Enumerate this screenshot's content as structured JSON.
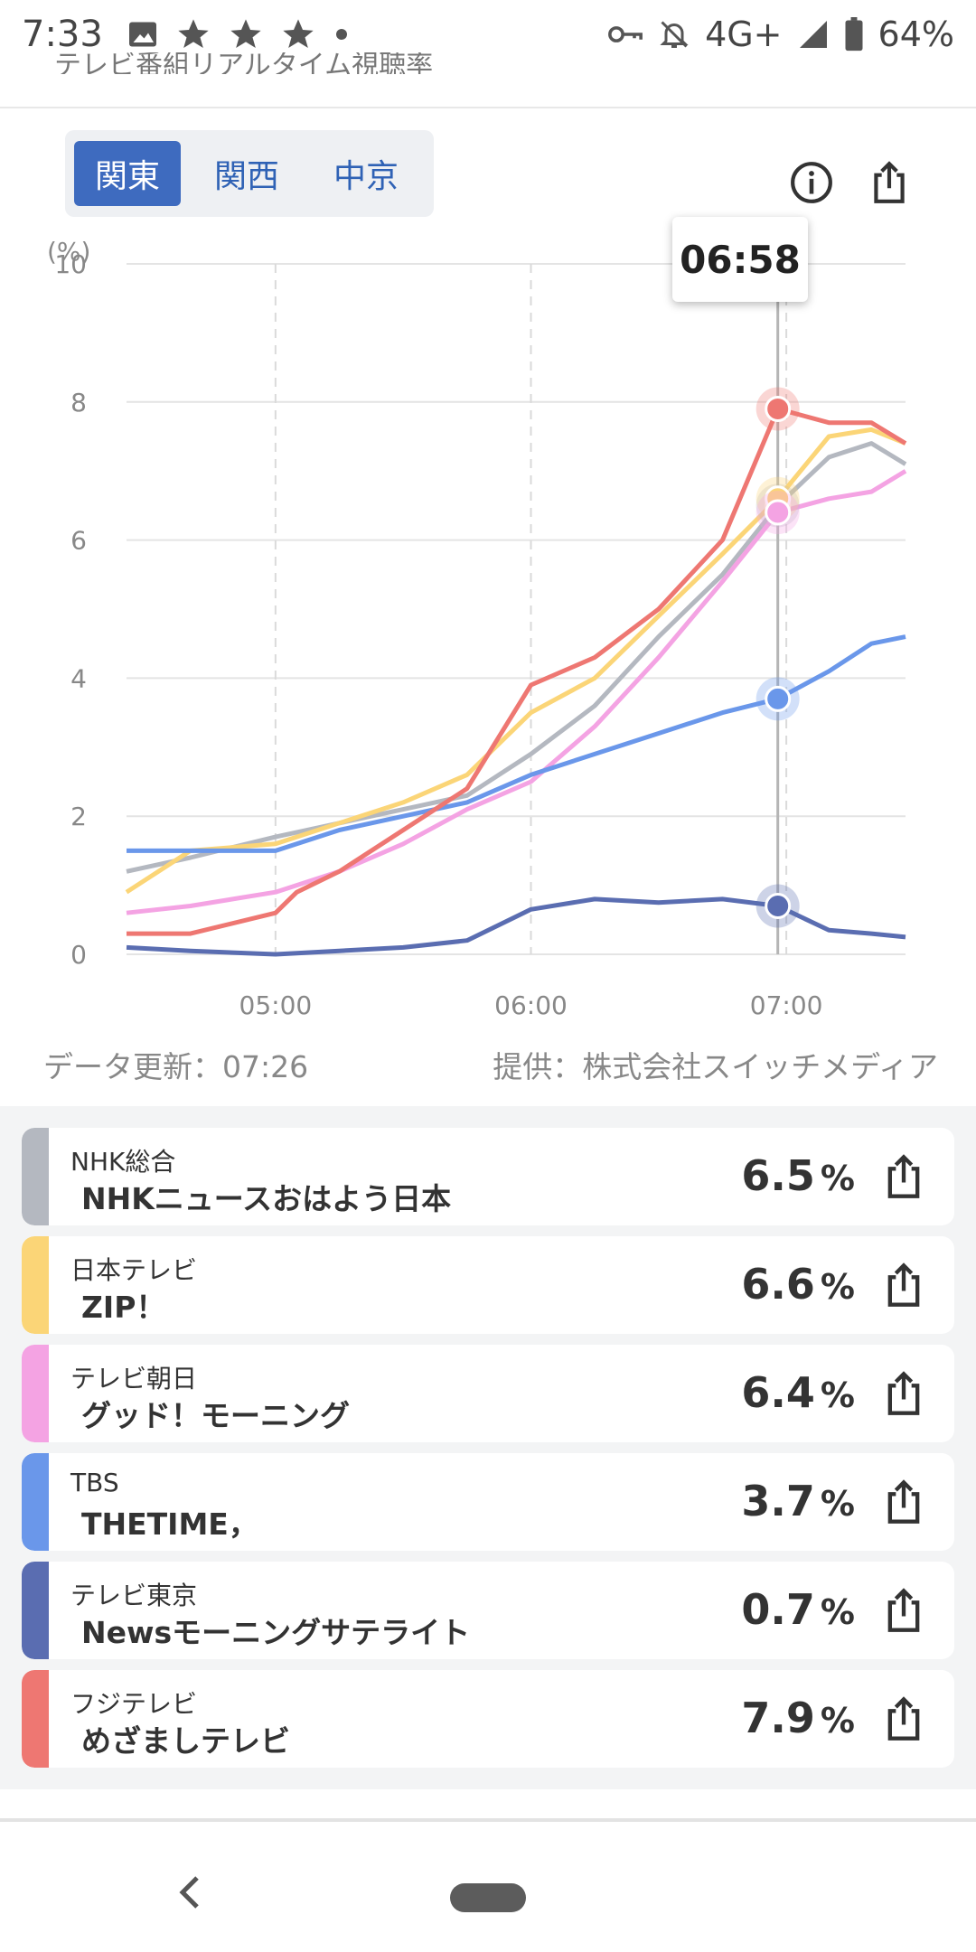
{
  "status_bar": {
    "time": "7:33",
    "network": "4G+",
    "battery": "64%",
    "icons": [
      "image-icon",
      "star-icon",
      "star-icon",
      "star-icon",
      "dot-icon",
      "key-icon",
      "bell-off-icon",
      "signal-icon",
      "battery-icon"
    ]
  },
  "header": {
    "cut_title": "テレビ番組リアルタイム視聴率"
  },
  "tabs": [
    {
      "label": "関東",
      "active": true
    },
    {
      "label": "関西",
      "active": false
    },
    {
      "label": "中京",
      "active": false
    }
  ],
  "tooltip": {
    "time": "06:58"
  },
  "chart_data": {
    "type": "line",
    "ylabel": "(%)",
    "ylim": [
      0,
      10
    ],
    "yticks": [
      "0",
      "2",
      "4",
      "6",
      "8",
      "10"
    ],
    "xticks": [
      "05:00",
      "06:00",
      "07:00"
    ],
    "xlim": [
      "04:25",
      "07:28"
    ],
    "grid": true,
    "cursor_x": "06:58",
    "series": [
      {
        "name": "NHK総合",
        "color": "#b4b8c0",
        "x": [
          "04:25",
          "04:40",
          "05:00",
          "05:15",
          "05:30",
          "05:45",
          "06:00",
          "06:15",
          "06:30",
          "06:45",
          "06:58",
          "07:10",
          "07:20",
          "07:28"
        ],
        "values": [
          1.2,
          1.4,
          1.7,
          1.9,
          2.1,
          2.3,
          2.9,
          3.6,
          4.6,
          5.5,
          6.5,
          7.2,
          7.4,
          7.1
        ]
      },
      {
        "name": "日本テレビ",
        "color": "#fbd577",
        "x": [
          "04:25",
          "04:40",
          "05:00",
          "05:15",
          "05:30",
          "05:45",
          "06:00",
          "06:15",
          "06:30",
          "06:45",
          "06:58",
          "07:10",
          "07:20",
          "07:28"
        ],
        "values": [
          0.9,
          1.5,
          1.6,
          1.9,
          2.2,
          2.6,
          3.5,
          4.0,
          4.9,
          5.8,
          6.6,
          7.5,
          7.6,
          7.4
        ]
      },
      {
        "name": "テレビ朝日",
        "color": "#f4a3e3",
        "x": [
          "04:25",
          "04:40",
          "05:00",
          "05:15",
          "05:30",
          "05:45",
          "06:00",
          "06:15",
          "06:30",
          "06:45",
          "06:58",
          "07:10",
          "07:20",
          "07:28"
        ],
        "values": [
          0.6,
          0.7,
          0.9,
          1.2,
          1.6,
          2.1,
          2.5,
          3.3,
          4.3,
          5.4,
          6.4,
          6.6,
          6.7,
          7.0
        ]
      },
      {
        "name": "TBS",
        "color": "#6a97ea",
        "x": [
          "04:25",
          "04:40",
          "05:00",
          "05:15",
          "05:30",
          "05:45",
          "06:00",
          "06:15",
          "06:30",
          "06:45",
          "06:58",
          "07:10",
          "07:20",
          "07:28"
        ],
        "values": [
          1.5,
          1.5,
          1.5,
          1.8,
          2.0,
          2.2,
          2.6,
          2.9,
          3.2,
          3.5,
          3.7,
          4.1,
          4.5,
          4.6
        ]
      },
      {
        "name": "テレビ東京",
        "color": "#5a6db1",
        "x": [
          "04:25",
          "04:40",
          "05:00",
          "05:15",
          "05:30",
          "05:45",
          "06:00",
          "06:15",
          "06:30",
          "06:45",
          "06:58",
          "07:10",
          "07:20",
          "07:28"
        ],
        "values": [
          0.1,
          0.05,
          0.0,
          0.05,
          0.1,
          0.2,
          0.65,
          0.8,
          0.75,
          0.8,
          0.7,
          0.35,
          0.3,
          0.25
        ]
      },
      {
        "name": "フジテレビ",
        "color": "#ee7772",
        "x": [
          "04:25",
          "04:40",
          "05:00",
          "05:05",
          "05:15",
          "05:30",
          "05:45",
          "06:00",
          "06:15",
          "06:30",
          "06:45",
          "06:58",
          "07:10",
          "07:20",
          "07:28"
        ],
        "values": [
          0.3,
          0.3,
          0.6,
          0.9,
          1.2,
          1.8,
          2.4,
          3.9,
          4.3,
          5.0,
          6.0,
          7.9,
          7.7,
          7.7,
          7.4
        ]
      }
    ]
  },
  "meta": {
    "updated": "データ更新：07:26",
    "provider": "提供：株式会社スイッチメディア"
  },
  "channels": [
    {
      "channel": "NHK総合",
      "program": "NHKニュースおはよう日本",
      "rating": "6.5",
      "unit": "%",
      "color": "#b4b8c0"
    },
    {
      "channel": "日本テレビ",
      "program": "ZIP！",
      "rating": "6.6",
      "unit": "%",
      "color": "#fbd577"
    },
    {
      "channel": "テレビ朝日",
      "program": "グッド！モーニング",
      "rating": "6.4",
      "unit": "%",
      "color": "#f4a3e3"
    },
    {
      "channel": "TBS",
      "program": "THETIME，",
      "rating": "3.7",
      "unit": "%",
      "color": "#6a97ea"
    },
    {
      "channel": "テレビ東京",
      "program": "Newsモーニングサテライト",
      "rating": "0.7",
      "unit": "%",
      "color": "#5a6db1"
    },
    {
      "channel": "フジテレビ",
      "program": "めざましテレビ",
      "rating": "7.9",
      "unit": "%",
      "color": "#ee7772"
    }
  ]
}
